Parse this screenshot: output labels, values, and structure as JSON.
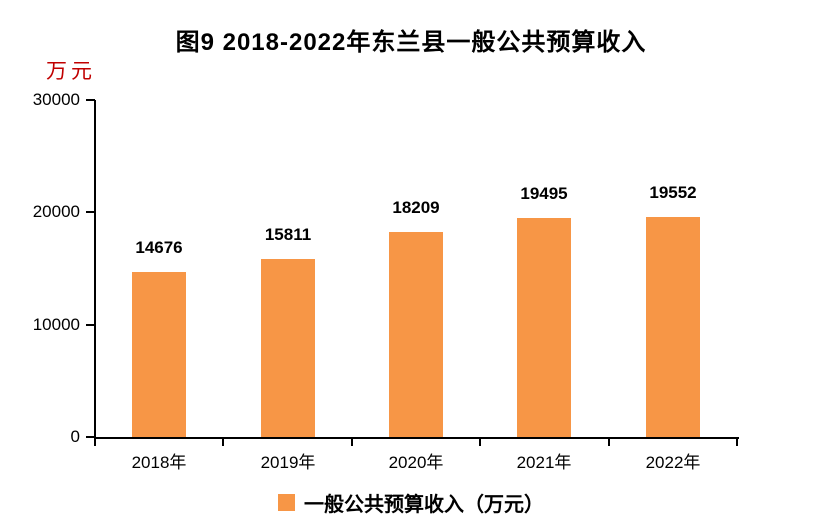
{
  "chart": {
    "title": "图9  2018-2022年东兰县一般公共预算收入",
    "unit_label": "万元",
    "legend": "一般公共预算收入（万元）",
    "colors": {
      "bar": "#F79646",
      "unit_label": "#C00000",
      "axis": "#000000",
      "text": "#000000"
    }
  },
  "chart_data": {
    "type": "bar",
    "title": "图9  2018-2022年东兰县一般公共预算收入",
    "categories": [
      "2018年",
      "2019年",
      "2020年",
      "2021年",
      "2022年"
    ],
    "series": [
      {
        "name": "一般公共预算收入（万元）",
        "values": [
          14676,
          15811,
          18209,
          19495,
          19552
        ]
      }
    ],
    "xlabel": "",
    "ylabel": "万元",
    "ylim": [
      0,
      30000
    ],
    "y_ticks": [
      0,
      10000,
      20000,
      30000
    ],
    "grid": false,
    "legend_position": "bottom",
    "bar_color": "#F79646",
    "data_labels": true
  }
}
